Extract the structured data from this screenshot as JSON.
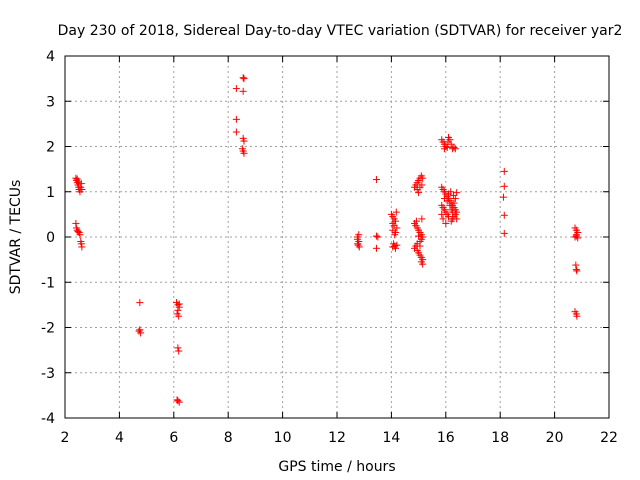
{
  "chart_data": {
    "type": "scatter",
    "title": "Day 230 of 2018, Sidereal Day-to-day VTEC variation (SDTVAR) for receiver yar2",
    "xlabel": "GPS time / hours",
    "ylabel": "SDTVAR / TECUs",
    "xlim": [
      2,
      22
    ],
    "ylim": [
      -4,
      4
    ],
    "xticks": [
      "2",
      "4",
      "6",
      "8",
      "10",
      "12",
      "14",
      "16",
      "18",
      "20",
      "22"
    ],
    "yticks": [
      "-4",
      "-3",
      "-2",
      "-1",
      "0",
      "1",
      "2",
      "3",
      "4"
    ],
    "grid": true,
    "marker": "+",
    "color": "#ff0000",
    "series": [
      {
        "name": "SDTVAR",
        "points": [
          [
            2.4,
            1.3
          ],
          [
            2.42,
            1.25
          ],
          [
            2.45,
            1.2
          ],
          [
            2.48,
            1.15
          ],
          [
            2.5,
            1.1
          ],
          [
            2.52,
            1.05
          ],
          [
            2.55,
            1.0
          ],
          [
            2.58,
            1.1
          ],
          [
            2.6,
            1.18
          ],
          [
            2.62,
            1.05
          ],
          [
            2.45,
            1.28
          ],
          [
            2.5,
            1.22
          ],
          [
            2.4,
            0.3
          ],
          [
            2.42,
            0.2
          ],
          [
            2.45,
            0.15
          ],
          [
            2.48,
            0.12
          ],
          [
            2.52,
            0.1
          ],
          [
            2.55,
            0.05
          ],
          [
            2.6,
            -0.15
          ],
          [
            2.62,
            -0.22
          ],
          [
            2.58,
            -0.1
          ],
          [
            4.75,
            -1.45
          ],
          [
            4.75,
            -2.05
          ],
          [
            4.78,
            -2.12
          ],
          [
            4.72,
            -2.08
          ],
          [
            6.1,
            -1.45
          ],
          [
            6.15,
            -1.5
          ],
          [
            6.2,
            -1.55
          ],
          [
            6.15,
            -1.62
          ],
          [
            6.12,
            -1.7
          ],
          [
            6.18,
            -1.75
          ],
          [
            6.2,
            -1.48
          ],
          [
            6.15,
            -2.45
          ],
          [
            6.18,
            -2.52
          ],
          [
            6.15,
            -3.62
          ],
          [
            6.2,
            -3.65
          ],
          [
            6.12,
            -3.6
          ],
          [
            8.3,
            3.28
          ],
          [
            8.55,
            3.52
          ],
          [
            8.58,
            3.5
          ],
          [
            8.55,
            3.22
          ],
          [
            8.3,
            2.6
          ],
          [
            8.3,
            2.32
          ],
          [
            8.55,
            2.18
          ],
          [
            8.58,
            2.12
          ],
          [
            8.55,
            1.9
          ],
          [
            8.58,
            1.85
          ],
          [
            8.52,
            1.95
          ],
          [
            12.75,
            0.0
          ],
          [
            12.75,
            -0.05
          ],
          [
            12.8,
            -0.1
          ],
          [
            12.78,
            -0.18
          ],
          [
            12.82,
            -0.22
          ],
          [
            12.76,
            -0.15
          ],
          [
            12.8,
            0.05
          ],
          [
            13.45,
            1.27
          ],
          [
            13.45,
            0.02
          ],
          [
            13.5,
            0.0
          ],
          [
            13.45,
            -0.25
          ],
          [
            14.0,
            0.5
          ],
          [
            14.05,
            0.45
          ],
          [
            14.1,
            0.4
          ],
          [
            14.15,
            0.35
          ],
          [
            14.05,
            0.3
          ],
          [
            14.1,
            0.25
          ],
          [
            14.2,
            0.2
          ],
          [
            14.15,
            0.1
          ],
          [
            14.05,
            0.15
          ],
          [
            14.12,
            0.05
          ],
          [
            14.18,
            0.55
          ],
          [
            14.08,
            -0.15
          ],
          [
            14.12,
            -0.2
          ],
          [
            14.15,
            -0.25
          ],
          [
            14.05,
            -0.22
          ],
          [
            14.2,
            -0.18
          ],
          [
            14.85,
            1.1
          ],
          [
            14.9,
            1.15
          ],
          [
            14.95,
            1.2
          ],
          [
            15.0,
            1.25
          ],
          [
            15.05,
            1.3
          ],
          [
            15.1,
            1.35
          ],
          [
            15.05,
            1.1
          ],
          [
            14.95,
            1.05
          ],
          [
            15.0,
            0.98
          ],
          [
            15.15,
            1.3
          ],
          [
            15.12,
            1.15
          ],
          [
            14.85,
            0.3
          ],
          [
            14.9,
            0.25
          ],
          [
            14.95,
            0.2
          ],
          [
            15.0,
            0.15
          ],
          [
            15.05,
            0.1
          ],
          [
            15.1,
            0.05
          ],
          [
            15.15,
            0.0
          ],
          [
            15.1,
            -0.05
          ],
          [
            15.05,
            -0.1
          ],
          [
            14.95,
            -0.15
          ],
          [
            14.9,
            -0.2
          ],
          [
            14.85,
            -0.25
          ],
          [
            14.95,
            -0.3
          ],
          [
            15.0,
            -0.35
          ],
          [
            15.05,
            -0.4
          ],
          [
            15.1,
            -0.45
          ],
          [
            15.15,
            -0.5
          ],
          [
            15.1,
            -0.55
          ],
          [
            15.15,
            -0.6
          ],
          [
            15.05,
            -0.2
          ],
          [
            14.92,
            0.35
          ],
          [
            15.12,
            0.4
          ],
          [
            15.0,
            0.02
          ],
          [
            15.85,
            2.15
          ],
          [
            15.9,
            2.1
          ],
          [
            15.95,
            2.05
          ],
          [
            16.0,
            2.0
          ],
          [
            16.05,
            1.98
          ],
          [
            16.1,
            2.2
          ],
          [
            16.15,
            2.15
          ],
          [
            16.2,
            2.05
          ],
          [
            16.25,
            1.95
          ],
          [
            16.3,
            1.98
          ],
          [
            16.35,
            1.95
          ],
          [
            15.95,
            1.95
          ],
          [
            16.08,
            2.1
          ],
          [
            15.85,
            1.1
          ],
          [
            15.9,
            1.05
          ],
          [
            15.95,
            1.0
          ],
          [
            16.0,
            0.95
          ],
          [
            16.05,
            0.9
          ],
          [
            16.1,
            0.85
          ],
          [
            16.15,
            0.8
          ],
          [
            16.2,
            0.75
          ],
          [
            16.25,
            0.7
          ],
          [
            16.3,
            0.65
          ],
          [
            16.35,
            0.6
          ],
          [
            16.4,
            0.55
          ],
          [
            16.35,
            0.5
          ],
          [
            16.3,
            0.45
          ],
          [
            16.25,
            0.4
          ],
          [
            16.2,
            0.35
          ],
          [
            16.1,
            0.45
          ],
          [
            16.05,
            0.5
          ],
          [
            16.0,
            0.55
          ],
          [
            15.95,
            0.6
          ],
          [
            15.9,
            0.65
          ],
          [
            15.85,
            0.7
          ],
          [
            16.1,
            0.95
          ],
          [
            16.4,
            0.98
          ],
          [
            16.35,
            0.85
          ],
          [
            16.2,
            0.6
          ],
          [
            16.15,
            0.7
          ],
          [
            16.05,
            0.8
          ],
          [
            16.25,
            0.55
          ],
          [
            15.9,
            0.4
          ],
          [
            15.85,
            0.5
          ],
          [
            16.0,
            0.3
          ],
          [
            16.3,
            0.75
          ],
          [
            16.4,
            0.4
          ],
          [
            15.95,
            0.85
          ],
          [
            16.18,
            1.0
          ],
          [
            16.28,
            0.92
          ],
          [
            18.15,
            1.45
          ],
          [
            18.15,
            1.12
          ],
          [
            18.12,
            0.88
          ],
          [
            18.15,
            0.48
          ],
          [
            18.15,
            0.08
          ],
          [
            20.75,
            0.2
          ],
          [
            20.8,
            0.15
          ],
          [
            20.85,
            0.1
          ],
          [
            20.8,
            0.05
          ],
          [
            20.75,
            0.0
          ],
          [
            20.85,
            -0.02
          ],
          [
            20.8,
            0.02
          ],
          [
            20.78,
            -0.62
          ],
          [
            20.8,
            -0.72
          ],
          [
            20.82,
            -0.75
          ],
          [
            20.75,
            -1.65
          ],
          [
            20.8,
            -1.7
          ],
          [
            20.82,
            -1.75
          ]
        ]
      }
    ]
  }
}
